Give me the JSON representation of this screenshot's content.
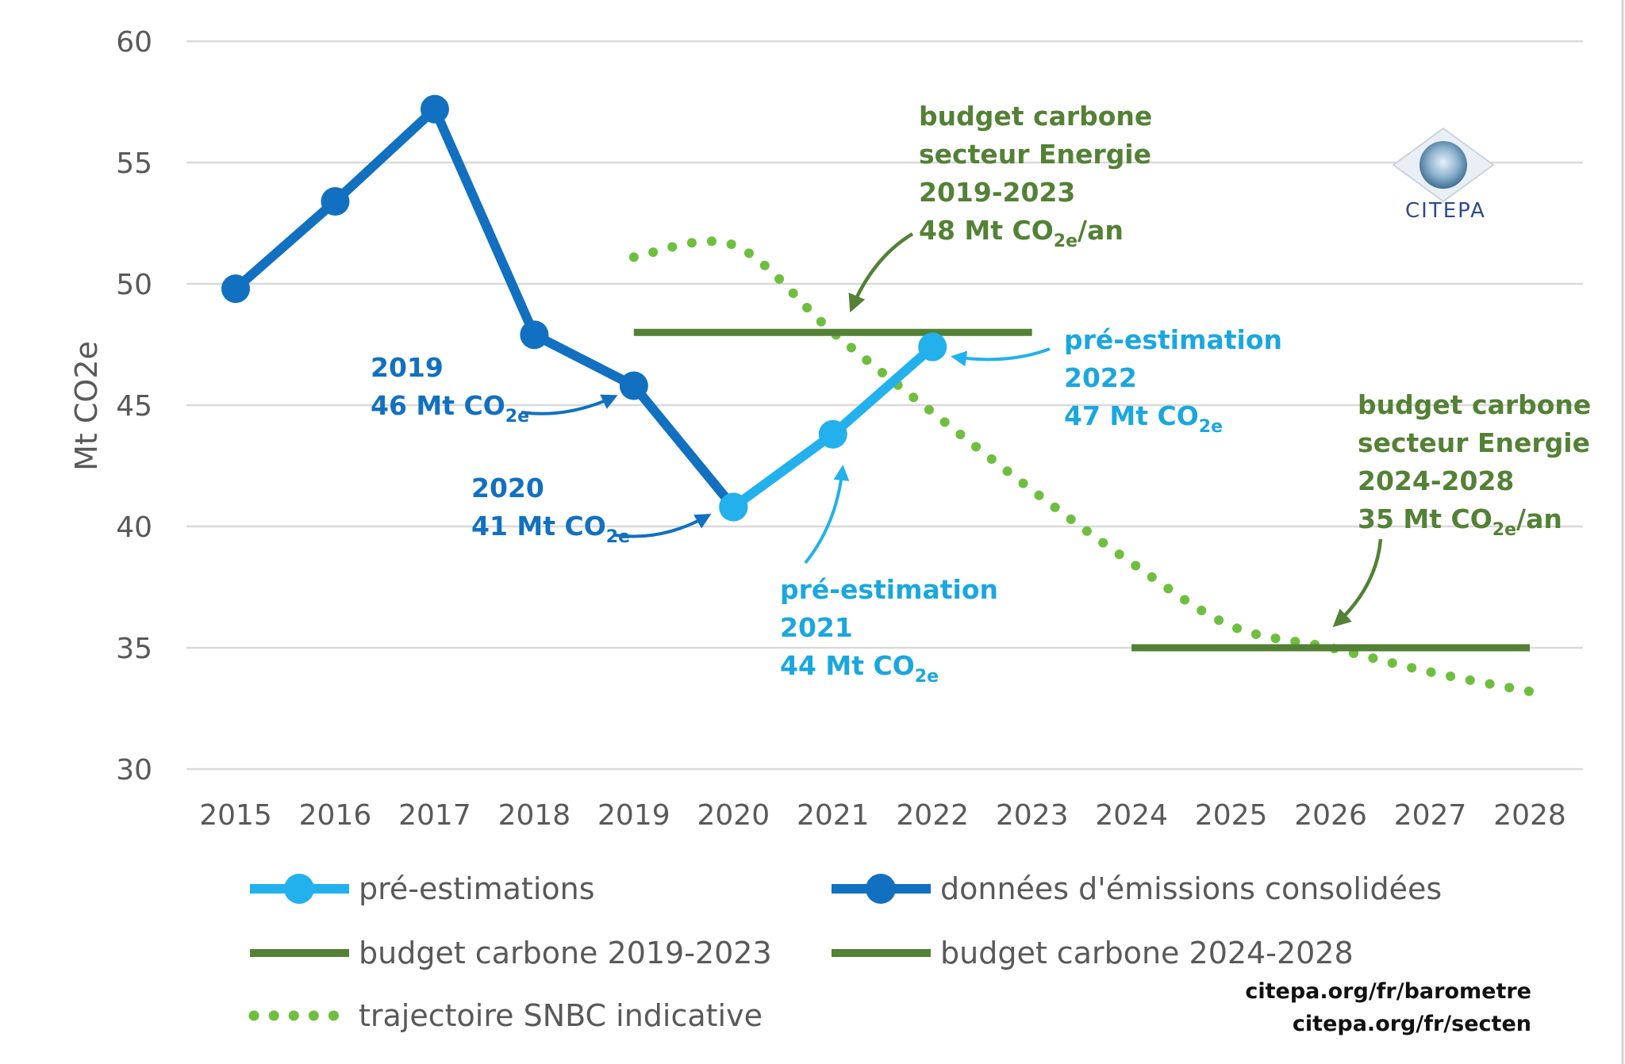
{
  "chart_data": {
    "type": "line",
    "ylabel": "Mt CO2e",
    "xlabel": "",
    "ylim": [
      30,
      60
    ],
    "yticks": [
      30,
      35,
      40,
      45,
      50,
      55,
      60
    ],
    "xlim": [
      2015,
      2028
    ],
    "x_ticks": [
      "2015",
      "2016",
      "2017",
      "2018",
      "2019",
      "2020",
      "2021",
      "2022",
      "2023",
      "2024",
      "2025",
      "2026",
      "2027",
      "2028"
    ],
    "grid": "horizontal",
    "series": [
      {
        "name": "données d'émissions consolidées",
        "style": "line-markers",
        "color": "#1270c0",
        "x": [
          2015,
          2016,
          2017,
          2018,
          2019,
          2020
        ],
        "y": [
          49.8,
          53.4,
          57.2,
          47.9,
          45.8,
          40.8
        ]
      },
      {
        "name": "pré-estimations",
        "style": "line-markers",
        "color": "#22b1ec",
        "x": [
          2020,
          2021,
          2022
        ],
        "y": [
          40.8,
          43.8,
          47.4
        ]
      },
      {
        "name": "budget carbone 2019-2023",
        "style": "line",
        "color": "#538135",
        "x": [
          2019,
          2023
        ],
        "y": [
          48,
          48
        ]
      },
      {
        "name": "budget carbone 2024-2028",
        "style": "line",
        "color": "#538135",
        "x": [
          2024,
          2028
        ],
        "y": [
          35,
          35
        ]
      },
      {
        "name": "trajectoire SNBC indicative",
        "style": "dotted",
        "color": "#6fbf3f",
        "x": [
          2019,
          2020,
          2021,
          2022,
          2023,
          2024,
          2025,
          2026,
          2027,
          2028
        ],
        "y": [
          51.1,
          51.6,
          48.0,
          44.7,
          41.5,
          38.5,
          35.9,
          35.0,
          34.0,
          33.2
        ]
      }
    ],
    "legend": [
      {
        "label": "pré-estimations",
        "series": 1
      },
      {
        "label": "données d'émissions consolidées",
        "series": 0
      },
      {
        "label": "budget carbone 2019-2023",
        "series": 2
      },
      {
        "label": "budget carbone 2024-2028",
        "series": 3
      },
      {
        "label": "trajectoire SNBC indicative",
        "series": 4
      }
    ],
    "legend_position": "bottom",
    "annotations": [
      {
        "class": "ann-green",
        "lines": [
          "budget carbone",
          "secteur Energie",
          "2019-2023",
          "48 Mt CO|2e|/an"
        ]
      },
      {
        "class": "ann-green",
        "lines": [
          "budget carbone",
          "secteur Energie",
          "2024-2028",
          "35 Mt CO|2e|/an"
        ]
      },
      {
        "class": "ann-dark",
        "lines": [
          "2019",
          "46 Mt CO|2e|"
        ]
      },
      {
        "class": "ann-dark",
        "lines": [
          "2020",
          "41 Mt CO|2e|"
        ]
      },
      {
        "class": "ann-light",
        "lines": [
          "pré-estimation",
          "2021",
          "44 Mt CO|2e|"
        ]
      },
      {
        "class": "ann-light",
        "lines": [
          "pré-estimation",
          "2022",
          "47 Mt CO|2e|"
        ]
      }
    ]
  },
  "logo": {
    "text": "CITEPA"
  },
  "sources": [
    "citepa.org/fr/barometre",
    "citepa.org/fr/secten"
  ]
}
